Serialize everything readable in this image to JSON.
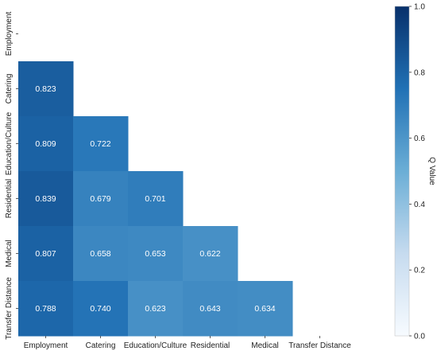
{
  "chart_data": {
    "type": "heatmap",
    "title": "",
    "xlabel": "",
    "ylabel": "",
    "layout": "lower-triangle (diagonal and upper cells masked)",
    "rows": [
      "Employment",
      "Catering",
      "Education/Culture",
      "Residential",
      "Medical",
      "Transfer Distance"
    ],
    "columns": [
      "Employment",
      "Catering",
      "Education/Culture",
      "Residential",
      "Medical",
      "Transfer Distance"
    ],
    "cells": [
      {
        "row": "Catering",
        "column": "Employment",
        "value": 0.823,
        "label": "0.823"
      },
      {
        "row": "Education/Culture",
        "column": "Employment",
        "value": 0.809,
        "label": "0.809"
      },
      {
        "row": "Education/Culture",
        "column": "Catering",
        "value": 0.722,
        "label": "0.722"
      },
      {
        "row": "Residential",
        "column": "Employment",
        "value": 0.839,
        "label": "0.839"
      },
      {
        "row": "Residential",
        "column": "Catering",
        "value": 0.679,
        "label": "0.679"
      },
      {
        "row": "Residential",
        "column": "Education/Culture",
        "value": 0.701,
        "label": "0.701"
      },
      {
        "row": "Medical",
        "column": "Employment",
        "value": 0.807,
        "label": "0.807"
      },
      {
        "row": "Medical",
        "column": "Catering",
        "value": 0.658,
        "label": "0.658"
      },
      {
        "row": "Medical",
        "column": "Education/Culture",
        "value": 0.653,
        "label": "0.653"
      },
      {
        "row": "Medical",
        "column": "Residential",
        "value": 0.622,
        "label": "0.622"
      },
      {
        "row": "Transfer Distance",
        "column": "Employment",
        "value": 0.788,
        "label": "0.788"
      },
      {
        "row": "Transfer Distance",
        "column": "Catering",
        "value": 0.74,
        "label": "0.740"
      },
      {
        "row": "Transfer Distance",
        "column": "Education/Culture",
        "value": 0.623,
        "label": "0.623"
      },
      {
        "row": "Transfer Distance",
        "column": "Residential",
        "value": 0.643,
        "label": "0.643"
      },
      {
        "row": "Transfer Distance",
        "column": "Medical",
        "value": 0.634,
        "label": "0.634"
      }
    ],
    "colorbar": {
      "label": "Q Value",
      "range": [
        0.0,
        1.0
      ],
      "ticks": [
        0.0,
        0.2,
        0.4,
        0.6,
        0.8,
        1.0
      ],
      "tick_labels": [
        "0.0",
        "0.2",
        "0.4",
        "0.6",
        "0.8",
        "1.0"
      ],
      "colormap": "Blues",
      "color_stops": [
        "#f7fbff",
        "#c6dbef",
        "#6baed6",
        "#2171b5",
        "#08306b"
      ],
      "position": "right"
    },
    "grid": false
  }
}
